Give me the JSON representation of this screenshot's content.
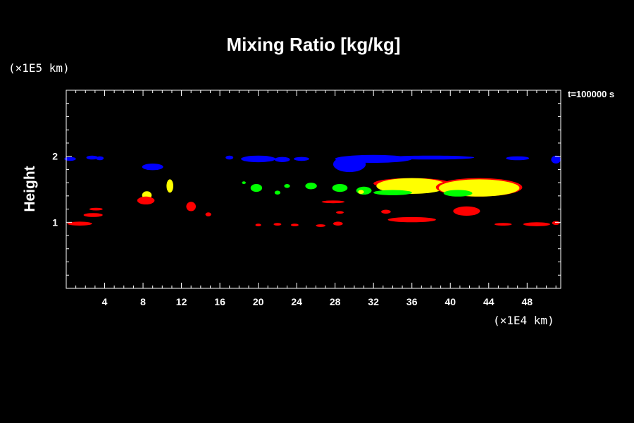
{
  "chart_data": {
    "type": "contour",
    "title": "Mixing Ratio [kg/kg]",
    "xlabel": "",
    "ylabel": "Height",
    "x_unit_label": "(×1E4 km)",
    "y_unit_label": "(×1E5 km)",
    "time_label": "t=100000 s",
    "xlim": [
      0,
      51.5
    ],
    "ylim": [
      0,
      3.0
    ],
    "x_ticks": [
      4,
      8,
      12,
      16,
      20,
      24,
      28,
      32,
      36,
      40,
      44,
      48
    ],
    "y_ticks": [
      1,
      2
    ],
    "x_tick_labels": [
      "4",
      "8",
      "12",
      "16",
      "20",
      "24",
      "28",
      "32",
      "36",
      "40",
      "44",
      "48"
    ],
    "y_tick_labels": [
      "1",
      "2"
    ],
    "grid": false,
    "colors": {
      "background": "#000000",
      "axes": "#ffffff",
      "blue": "#0000ff",
      "red": "#ff0000",
      "green": "#00ff00",
      "yellow": "#ffff00"
    },
    "regions": [
      {
        "color": "blue",
        "x": 0.4,
        "y": 1.96,
        "rx": 0.6,
        "ry": 0.03
      },
      {
        "color": "blue",
        "x": 2.7,
        "y": 1.98,
        "rx": 0.6,
        "ry": 0.03
      },
      {
        "color": "blue",
        "x": 3.5,
        "y": 1.97,
        "rx": 0.4,
        "ry": 0.03
      },
      {
        "color": "blue",
        "x": 9.0,
        "y": 1.84,
        "rx": 1.1,
        "ry": 0.05
      },
      {
        "color": "blue",
        "x": 17.0,
        "y": 1.98,
        "rx": 0.4,
        "ry": 0.03
      },
      {
        "color": "blue",
        "x": 20.0,
        "y": 1.96,
        "rx": 1.8,
        "ry": 0.05
      },
      {
        "color": "blue",
        "x": 22.5,
        "y": 1.95,
        "rx": 0.8,
        "ry": 0.04
      },
      {
        "color": "blue",
        "x": 24.5,
        "y": 1.96,
        "rx": 0.8,
        "ry": 0.03
      },
      {
        "color": "blue",
        "x": 32.0,
        "y": 1.96,
        "rx": 4.0,
        "ry": 0.06
      },
      {
        "color": "blue",
        "x": 29.5,
        "y": 1.88,
        "rx": 1.7,
        "ry": 0.12
      },
      {
        "color": "blue",
        "x": 38.0,
        "y": 1.98,
        "rx": 4.5,
        "ry": 0.03
      },
      {
        "color": "blue",
        "x": 47.0,
        "y": 1.97,
        "rx": 1.2,
        "ry": 0.03
      },
      {
        "color": "blue",
        "x": 51.0,
        "y": 1.95,
        "rx": 0.5,
        "ry": 0.06
      },
      {
        "color": "yellow",
        "x": 8.4,
        "y": 1.41,
        "rx": 0.5,
        "ry": 0.06
      },
      {
        "color": "yellow",
        "x": 10.8,
        "y": 1.55,
        "rx": 0.35,
        "ry": 0.1
      },
      {
        "color": "green",
        "x": 19.8,
        "y": 1.52,
        "rx": 0.6,
        "ry": 0.06
      },
      {
        "color": "green",
        "x": 18.5,
        "y": 1.6,
        "rx": 0.2,
        "ry": 0.02
      },
      {
        "color": "green",
        "x": 22.0,
        "y": 1.45,
        "rx": 0.3,
        "ry": 0.03
      },
      {
        "color": "green",
        "x": 23.0,
        "y": 1.55,
        "rx": 0.3,
        "ry": 0.03
      },
      {
        "color": "green",
        "x": 25.5,
        "y": 1.55,
        "rx": 0.6,
        "ry": 0.05
      },
      {
        "color": "green",
        "x": 28.5,
        "y": 1.52,
        "rx": 0.8,
        "ry": 0.06
      },
      {
        "color": "green",
        "x": 31.0,
        "y": 1.48,
        "rx": 0.8,
        "ry": 0.06
      },
      {
        "color": "yellow",
        "x": 30.7,
        "y": 1.46,
        "rx": 0.3,
        "ry": 0.03
      },
      {
        "color": "red",
        "x": 36.0,
        "y": 1.59,
        "rx": 4.0,
        "ry": 0.08
      },
      {
        "color": "yellow",
        "x": 36.0,
        "y": 1.55,
        "rx": 3.7,
        "ry": 0.12
      },
      {
        "color": "green",
        "x": 34.0,
        "y": 1.45,
        "rx": 2.0,
        "ry": 0.04
      },
      {
        "color": "red",
        "x": 43.0,
        "y": 1.53,
        "rx": 4.5,
        "ry": 0.14
      },
      {
        "color": "yellow",
        "x": 43.0,
        "y": 1.52,
        "rx": 4.2,
        "ry": 0.13
      },
      {
        "color": "green",
        "x": 40.8,
        "y": 1.44,
        "rx": 1.5,
        "ry": 0.05
      },
      {
        "color": "red",
        "x": 8.3,
        "y": 1.33,
        "rx": 0.9,
        "ry": 0.06
      },
      {
        "color": "red",
        "x": 13.0,
        "y": 1.24,
        "rx": 0.5,
        "ry": 0.07
      },
      {
        "color": "red",
        "x": 14.8,
        "y": 1.12,
        "rx": 0.3,
        "ry": 0.03
      },
      {
        "color": "red",
        "x": 3.1,
        "y": 1.2,
        "rx": 0.7,
        "ry": 0.02
      },
      {
        "color": "red",
        "x": 2.8,
        "y": 1.11,
        "rx": 1.0,
        "ry": 0.03
      },
      {
        "color": "red",
        "x": 1.4,
        "y": 0.98,
        "rx": 1.3,
        "ry": 0.03
      },
      {
        "color": "red",
        "x": 27.8,
        "y": 1.31,
        "rx": 1.2,
        "ry": 0.02
      },
      {
        "color": "red",
        "x": 28.5,
        "y": 1.15,
        "rx": 0.4,
        "ry": 0.02
      },
      {
        "color": "red",
        "x": 22.0,
        "y": 0.97,
        "rx": 0.4,
        "ry": 0.02
      },
      {
        "color": "red",
        "x": 23.8,
        "y": 0.96,
        "rx": 0.4,
        "ry": 0.02
      },
      {
        "color": "red",
        "x": 26.5,
        "y": 0.95,
        "rx": 0.5,
        "ry": 0.02
      },
      {
        "color": "red",
        "x": 28.3,
        "y": 0.98,
        "rx": 0.5,
        "ry": 0.03
      },
      {
        "color": "red",
        "x": 20.0,
        "y": 0.96,
        "rx": 0.3,
        "ry": 0.02
      },
      {
        "color": "red",
        "x": 36.0,
        "y": 1.04,
        "rx": 2.5,
        "ry": 0.04
      },
      {
        "color": "red",
        "x": 33.3,
        "y": 1.16,
        "rx": 0.5,
        "ry": 0.03
      },
      {
        "color": "red",
        "x": 41.7,
        "y": 1.17,
        "rx": 1.4,
        "ry": 0.07
      },
      {
        "color": "red",
        "x": 45.5,
        "y": 0.97,
        "rx": 0.9,
        "ry": 0.02
      },
      {
        "color": "red",
        "x": 49.0,
        "y": 0.97,
        "rx": 1.4,
        "ry": 0.03
      },
      {
        "color": "red",
        "x": 51.0,
        "y": 0.99,
        "rx": 0.4,
        "ry": 0.03
      }
    ]
  }
}
